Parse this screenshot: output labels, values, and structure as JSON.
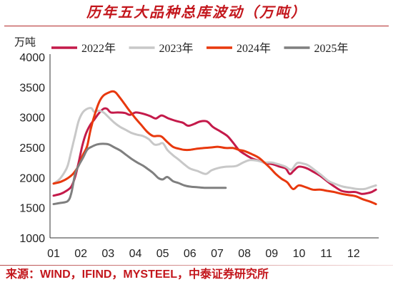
{
  "source": "来源：WIND，IFIND，MYSTEEL，中泰证券研究所",
  "chart_data": {
    "type": "line",
    "title": "历年五大品种总库波动（万吨）",
    "ylabel": "万吨",
    "ylim": [
      1000,
      4000
    ],
    "xlim": [
      0.87,
      12.87
    ],
    "yticks": [
      1000,
      1500,
      2000,
      2500,
      3000,
      3500,
      4000
    ],
    "xticks": [
      "01",
      "02",
      "03",
      "04",
      "05",
      "06",
      "07",
      "08",
      "09",
      "10",
      "11",
      "12"
    ],
    "grid": false,
    "legend": "top",
    "series": [
      {
        "name": "2022年",
        "color": "#c41a4a",
        "points": [
          [
            1.0,
            1700
          ],
          [
            1.26,
            1730
          ],
          [
            1.47,
            1780
          ],
          [
            1.65,
            1850
          ],
          [
            1.79,
            2010
          ],
          [
            1.92,
            2250
          ],
          [
            2.05,
            2520
          ],
          [
            2.18,
            2720
          ],
          [
            2.34,
            2870
          ],
          [
            2.49,
            2960
          ],
          [
            2.65,
            3060
          ],
          [
            2.83,
            3140
          ],
          [
            2.96,
            3140
          ],
          [
            3.1,
            3080
          ],
          [
            3.36,
            3080
          ],
          [
            3.62,
            3070
          ],
          [
            3.8,
            3040
          ],
          [
            4.01,
            3080
          ],
          [
            4.27,
            3060
          ],
          [
            4.54,
            3020
          ],
          [
            4.75,
            2980
          ],
          [
            4.96,
            3030
          ],
          [
            5.22,
            2980
          ],
          [
            5.48,
            2940
          ],
          [
            5.74,
            2910
          ],
          [
            5.93,
            2860
          ],
          [
            6.16,
            2890
          ],
          [
            6.37,
            2930
          ],
          [
            6.63,
            2930
          ],
          [
            6.84,
            2840
          ],
          [
            7.1,
            2770
          ],
          [
            7.37,
            2690
          ],
          [
            7.58,
            2580
          ],
          [
            7.79,
            2460
          ],
          [
            8.0,
            2390
          ],
          [
            8.26,
            2320
          ],
          [
            8.52,
            2280
          ],
          [
            8.78,
            2240
          ],
          [
            9.04,
            2220
          ],
          [
            9.3,
            2180
          ],
          [
            9.51,
            2150
          ],
          [
            9.66,
            2060
          ],
          [
            9.8,
            2110
          ],
          [
            9.99,
            2180
          ],
          [
            10.25,
            2160
          ],
          [
            10.51,
            2100
          ],
          [
            10.77,
            2030
          ],
          [
            11.03,
            1940
          ],
          [
            11.3,
            1850
          ],
          [
            11.56,
            1780
          ],
          [
            11.82,
            1760
          ],
          [
            12.08,
            1760
          ],
          [
            12.29,
            1730
          ],
          [
            12.5,
            1740
          ],
          [
            12.66,
            1760
          ],
          [
            12.82,
            1800
          ]
        ]
      },
      {
        "name": "2023年",
        "color": "#c8c8c8",
        "points": [
          [
            1.0,
            1900
          ],
          [
            1.21,
            1970
          ],
          [
            1.39,
            2080
          ],
          [
            1.52,
            2200
          ],
          [
            1.65,
            2440
          ],
          [
            1.79,
            2700
          ],
          [
            1.92,
            2940
          ],
          [
            2.07,
            3080
          ],
          [
            2.23,
            3140
          ],
          [
            2.39,
            3150
          ],
          [
            2.49,
            3090
          ],
          [
            2.65,
            3110
          ],
          [
            2.83,
            3080
          ],
          [
            3.02,
            3000
          ],
          [
            3.23,
            2910
          ],
          [
            3.44,
            2840
          ],
          [
            3.65,
            2790
          ],
          [
            3.86,
            2740
          ],
          [
            4.07,
            2710
          ],
          [
            4.27,
            2690
          ],
          [
            4.48,
            2640
          ],
          [
            4.69,
            2550
          ],
          [
            4.85,
            2550
          ],
          [
            5.01,
            2570
          ],
          [
            5.17,
            2460
          ],
          [
            5.38,
            2370
          ],
          [
            5.58,
            2300
          ],
          [
            5.79,
            2220
          ],
          [
            6.0,
            2150
          ],
          [
            6.27,
            2110
          ],
          [
            6.58,
            2060
          ],
          [
            6.79,
            2120
          ],
          [
            7.05,
            2160
          ],
          [
            7.31,
            2180
          ],
          [
            7.68,
            2190
          ],
          [
            7.95,
            2250
          ],
          [
            8.2,
            2290
          ],
          [
            8.47,
            2280
          ],
          [
            8.73,
            2250
          ],
          [
            8.99,
            2250
          ],
          [
            9.25,
            2220
          ],
          [
            9.51,
            2180
          ],
          [
            9.72,
            2130
          ],
          [
            9.93,
            2240
          ],
          [
            10.17,
            2230
          ],
          [
            10.35,
            2200
          ],
          [
            10.56,
            2130
          ],
          [
            10.82,
            2040
          ],
          [
            11.09,
            1940
          ],
          [
            11.35,
            1890
          ],
          [
            11.61,
            1850
          ],
          [
            11.87,
            1830
          ],
          [
            12.13,
            1810
          ],
          [
            12.4,
            1810
          ],
          [
            12.61,
            1840
          ],
          [
            12.82,
            1870
          ]
        ]
      },
      {
        "name": "2024年",
        "color": "#e8380d",
        "points": [
          [
            1.0,
            1900
          ],
          [
            1.26,
            1930
          ],
          [
            1.52,
            1990
          ],
          [
            1.73,
            2070
          ],
          [
            1.92,
            2200
          ],
          [
            2.07,
            2370
          ],
          [
            2.23,
            2520
          ],
          [
            2.36,
            2800
          ],
          [
            2.52,
            3060
          ],
          [
            2.68,
            3260
          ],
          [
            2.83,
            3360
          ],
          [
            3.02,
            3410
          ],
          [
            3.17,
            3430
          ],
          [
            3.28,
            3410
          ],
          [
            3.44,
            3320
          ],
          [
            3.62,
            3210
          ],
          [
            3.8,
            3100
          ],
          [
            4.01,
            2980
          ],
          [
            4.22,
            2870
          ],
          [
            4.43,
            2760
          ],
          [
            4.64,
            2690
          ],
          [
            4.8,
            2690
          ],
          [
            4.96,
            2680
          ],
          [
            5.17,
            2590
          ],
          [
            5.38,
            2510
          ],
          [
            5.58,
            2480
          ],
          [
            5.79,
            2460
          ],
          [
            6.0,
            2460
          ],
          [
            6.27,
            2480
          ],
          [
            6.53,
            2490
          ],
          [
            6.79,
            2500
          ],
          [
            7.05,
            2510
          ],
          [
            7.31,
            2490
          ],
          [
            7.58,
            2490
          ],
          [
            7.79,
            2460
          ],
          [
            8.0,
            2440
          ],
          [
            8.26,
            2390
          ],
          [
            8.52,
            2330
          ],
          [
            8.73,
            2250
          ],
          [
            8.94,
            2160
          ],
          [
            9.15,
            2060
          ],
          [
            9.36,
            1980
          ],
          [
            9.57,
            1920
          ],
          [
            9.78,
            1810
          ],
          [
            9.99,
            1870
          ],
          [
            10.25,
            1840
          ],
          [
            10.51,
            1800
          ],
          [
            10.77,
            1800
          ],
          [
            11.03,
            1780
          ],
          [
            11.3,
            1760
          ],
          [
            11.56,
            1730
          ],
          [
            11.82,
            1710
          ],
          [
            12.08,
            1690
          ],
          [
            12.34,
            1640
          ],
          [
            12.61,
            1600
          ],
          [
            12.82,
            1560
          ]
        ]
      },
      {
        "name": "2025年",
        "color": "#7f7f7f",
        "points": [
          [
            1.0,
            1560
          ],
          [
            1.26,
            1580
          ],
          [
            1.52,
            1610
          ],
          [
            1.65,
            1740
          ],
          [
            1.79,
            2060
          ],
          [
            1.92,
            2200
          ],
          [
            2.07,
            2320
          ],
          [
            2.23,
            2460
          ],
          [
            2.39,
            2510
          ],
          [
            2.6,
            2550
          ],
          [
            2.81,
            2560
          ],
          [
            3.02,
            2550
          ],
          [
            3.23,
            2500
          ],
          [
            3.44,
            2450
          ],
          [
            3.65,
            2380
          ],
          [
            3.86,
            2310
          ],
          [
            4.07,
            2250
          ],
          [
            4.27,
            2200
          ],
          [
            4.43,
            2150
          ],
          [
            4.64,
            2080
          ],
          [
            4.85,
            1990
          ],
          [
            5.01,
            1970
          ],
          [
            5.17,
            2010
          ],
          [
            5.38,
            1940
          ],
          [
            5.58,
            1910
          ],
          [
            5.79,
            1870
          ],
          [
            6.0,
            1850
          ],
          [
            6.27,
            1840
          ],
          [
            6.53,
            1830
          ],
          [
            6.79,
            1830
          ],
          [
            7.05,
            1830
          ],
          [
            7.31,
            1830
          ]
        ]
      }
    ]
  }
}
